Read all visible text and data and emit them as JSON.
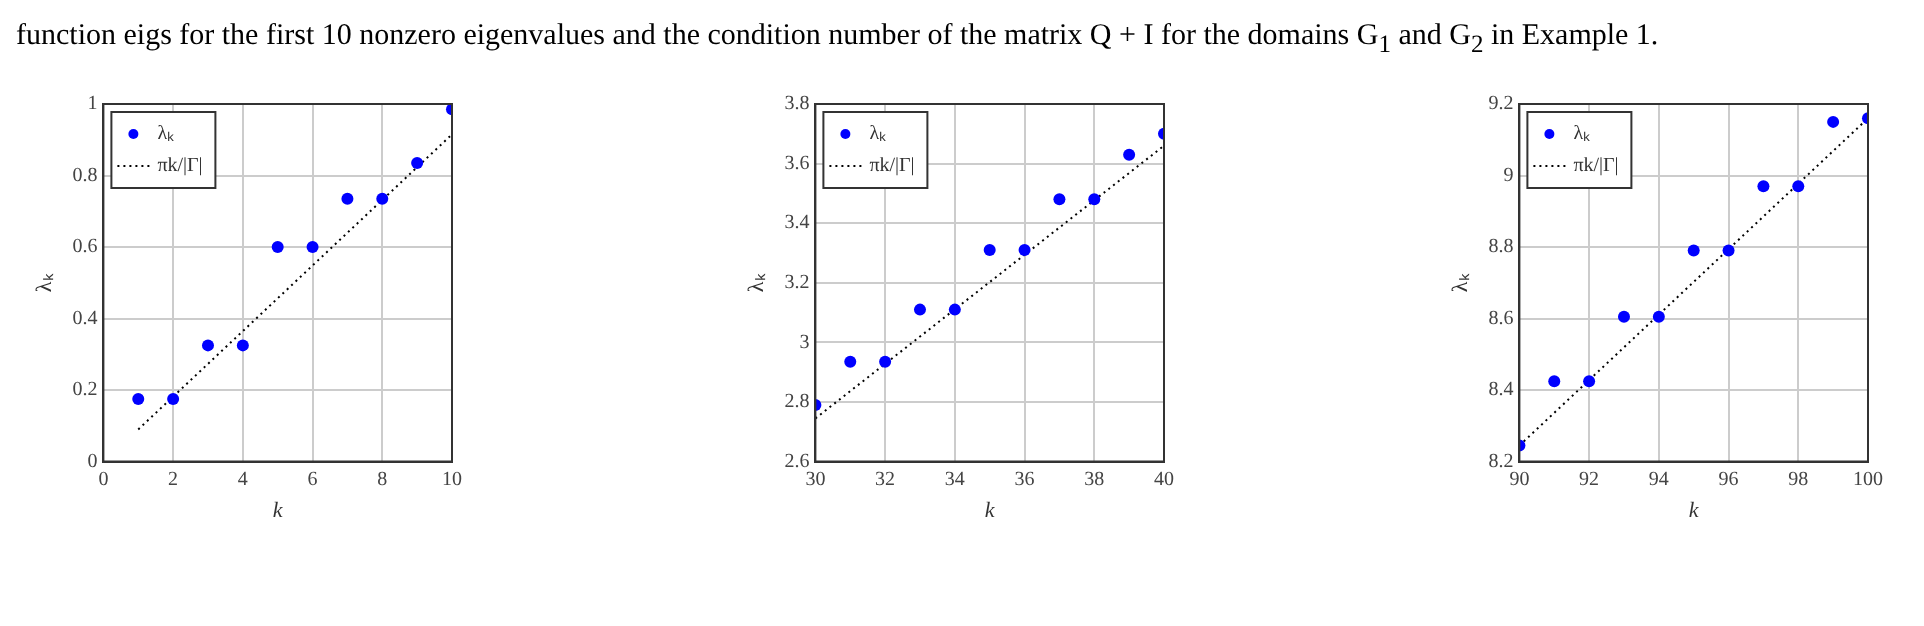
{
  "chart_data": [
    {
      "type": "scatter",
      "annotations": [
        "function eigs for the first 10 nonzero eigenvalues and the condition number of the matrix Q + I for the domains G$_{1}$ and G$_{2}$ in Example 1."
      ],
      "xlabel": "k",
      "ylabel": "λₖ",
      "x": [
        1,
        2,
        3,
        4,
        5,
        6,
        7,
        8,
        9,
        10
      ],
      "xlim": [
        0,
        10
      ],
      "xticks": [
        0,
        2,
        4,
        6,
        8,
        10
      ],
      "ylim": [
        0,
        1
      ],
      "yticks": [
        0,
        0.2,
        0.4,
        0.6,
        0.8,
        1
      ],
      "grid": true,
      "legend": "top left",
      "series": [
        {
          "name": "λₖ",
          "type": "scatter",
          "color": "#0000ff",
          "marker": "circle",
          "values": [
            0.175,
            0.175,
            0.325,
            0.325,
            0.6,
            0.6,
            0.735,
            0.735,
            0.835,
            0.985
          ]
        },
        {
          "name": "πk/|Γ|",
          "type": "line",
          "color": "#000000",
          "marker": "none",
          "line_style": "dotted",
          "x": [
            1,
            10
          ],
          "values": [
            0.09,
            0.915
          ]
        }
      ]
    },
    {
      "type": "scatter",
      "xlabel": "k",
      "ylabel": "λₖ",
      "x": [
        30,
        31,
        32,
        33,
        34,
        35,
        36,
        37,
        38,
        39,
        40
      ],
      "xlim": [
        30,
        40
      ],
      "xticks": [
        30,
        32,
        34,
        36,
        38,
        40
      ],
      "ylim": [
        2.6,
        3.8
      ],
      "yticks": [
        2.6,
        2.8,
        3,
        3.2,
        3.4,
        3.6,
        3.8
      ],
      "grid": true,
      "legend": "top left",
      "series": [
        {
          "name": "λₖ",
          "type": "scatter",
          "color": "#0000ff",
          "marker": "circle",
          "values": [
            2.79,
            2.935,
            2.935,
            3.11,
            3.11,
            3.31,
            3.31,
            3.48,
            3.48,
            3.63,
            3.7
          ]
        },
        {
          "name": "πk/|Γ|",
          "type": "line",
          "color": "#000000",
          "marker": "none",
          "line_style": "dotted",
          "x": [
            30,
            40
          ],
          "values": [
            2.745,
            3.66
          ]
        }
      ]
    },
    {
      "type": "scatter",
      "xlabel": "k",
      "ylabel": "λₖ",
      "x": [
        90,
        91,
        92,
        93,
        94,
        95,
        96,
        97,
        98,
        99,
        100
      ],
      "xlim": [
        90,
        100
      ],
      "xticks": [
        90,
        92,
        94,
        96,
        98,
        100
      ],
      "ylim": [
        8.2,
        9.2
      ],
      "yticks": [
        8.2,
        8.4,
        8.6,
        8.8,
        9,
        9.2
      ],
      "grid": true,
      "legend": "top left",
      "series": [
        {
          "name": "λₖ",
          "type": "scatter",
          "color": "#0000ff",
          "marker": "circle",
          "values": [
            8.245,
            8.425,
            8.425,
            8.605,
            8.605,
            8.79,
            8.79,
            8.97,
            8.97,
            9.15,
            9.16
          ]
        },
        {
          "name": "πk/|Γ|",
          "type": "line",
          "color": "#000000",
          "marker": "none",
          "line_style": "dotted",
          "x": [
            90,
            100
          ],
          "values": [
            8.245,
            9.16
          ]
        }
      ]
    }
  ]
}
